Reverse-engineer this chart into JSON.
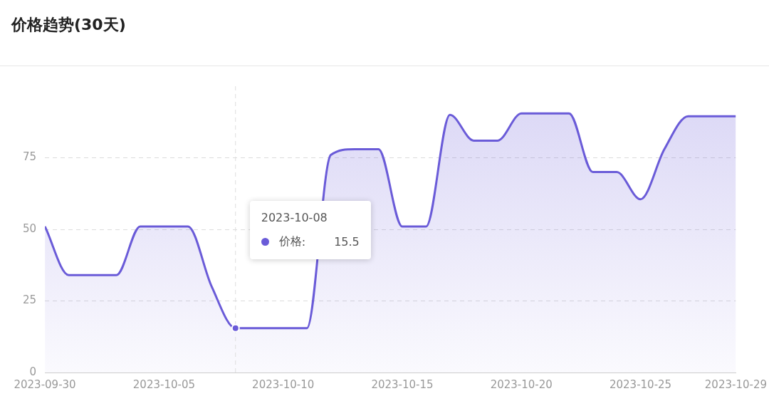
{
  "chart_data": {
    "type": "area",
    "title": "价格趋势(30天)",
    "x": [
      "2023-09-30",
      "2023-10-01",
      "2023-10-02",
      "2023-10-03",
      "2023-10-04",
      "2023-10-05",
      "2023-10-06",
      "2023-10-07",
      "2023-10-08",
      "2023-10-09",
      "2023-10-10",
      "2023-10-11",
      "2023-10-12",
      "2023-10-13",
      "2023-10-14",
      "2023-10-15",
      "2023-10-16",
      "2023-10-17",
      "2023-10-18",
      "2023-10-19",
      "2023-10-20",
      "2023-10-21",
      "2023-10-22",
      "2023-10-23",
      "2023-10-24",
      "2023-10-25",
      "2023-10-26",
      "2023-10-27",
      "2023-10-28",
      "2023-10-29"
    ],
    "series": [
      {
        "name": "价格",
        "color": "#6a5bd8",
        "values": [
          51,
          34,
          34,
          34,
          51,
          51,
          51,
          30,
          15.5,
          15.5,
          15.5,
          15.5,
          76,
          78,
          78,
          51,
          51,
          90,
          81,
          81,
          90.5,
          90.5,
          90.5,
          70,
          70,
          60.5,
          78,
          89.5,
          89.5,
          89.5
        ]
      }
    ],
    "xlim": [
      "2023-09-30",
      "2023-10-29"
    ],
    "xticks": [
      "2023-09-30",
      "2023-10-05",
      "2023-10-10",
      "2023-10-15",
      "2023-10-20",
      "2023-10-25",
      "2023-10-29"
    ],
    "ylim": [
      0,
      100
    ],
    "yticks": [
      0,
      25,
      50,
      75
    ],
    "grid": "y",
    "legend": "left",
    "marker": "none",
    "line_style": "solid",
    "ref_lines": [
      {
        "axis": "x",
        "value": "2023-10-08",
        "color": "#dddddd",
        "line_style": "dashed"
      }
    ],
    "annotations": [
      "2023-10-08",
      ":",
      "15.5"
    ]
  }
}
